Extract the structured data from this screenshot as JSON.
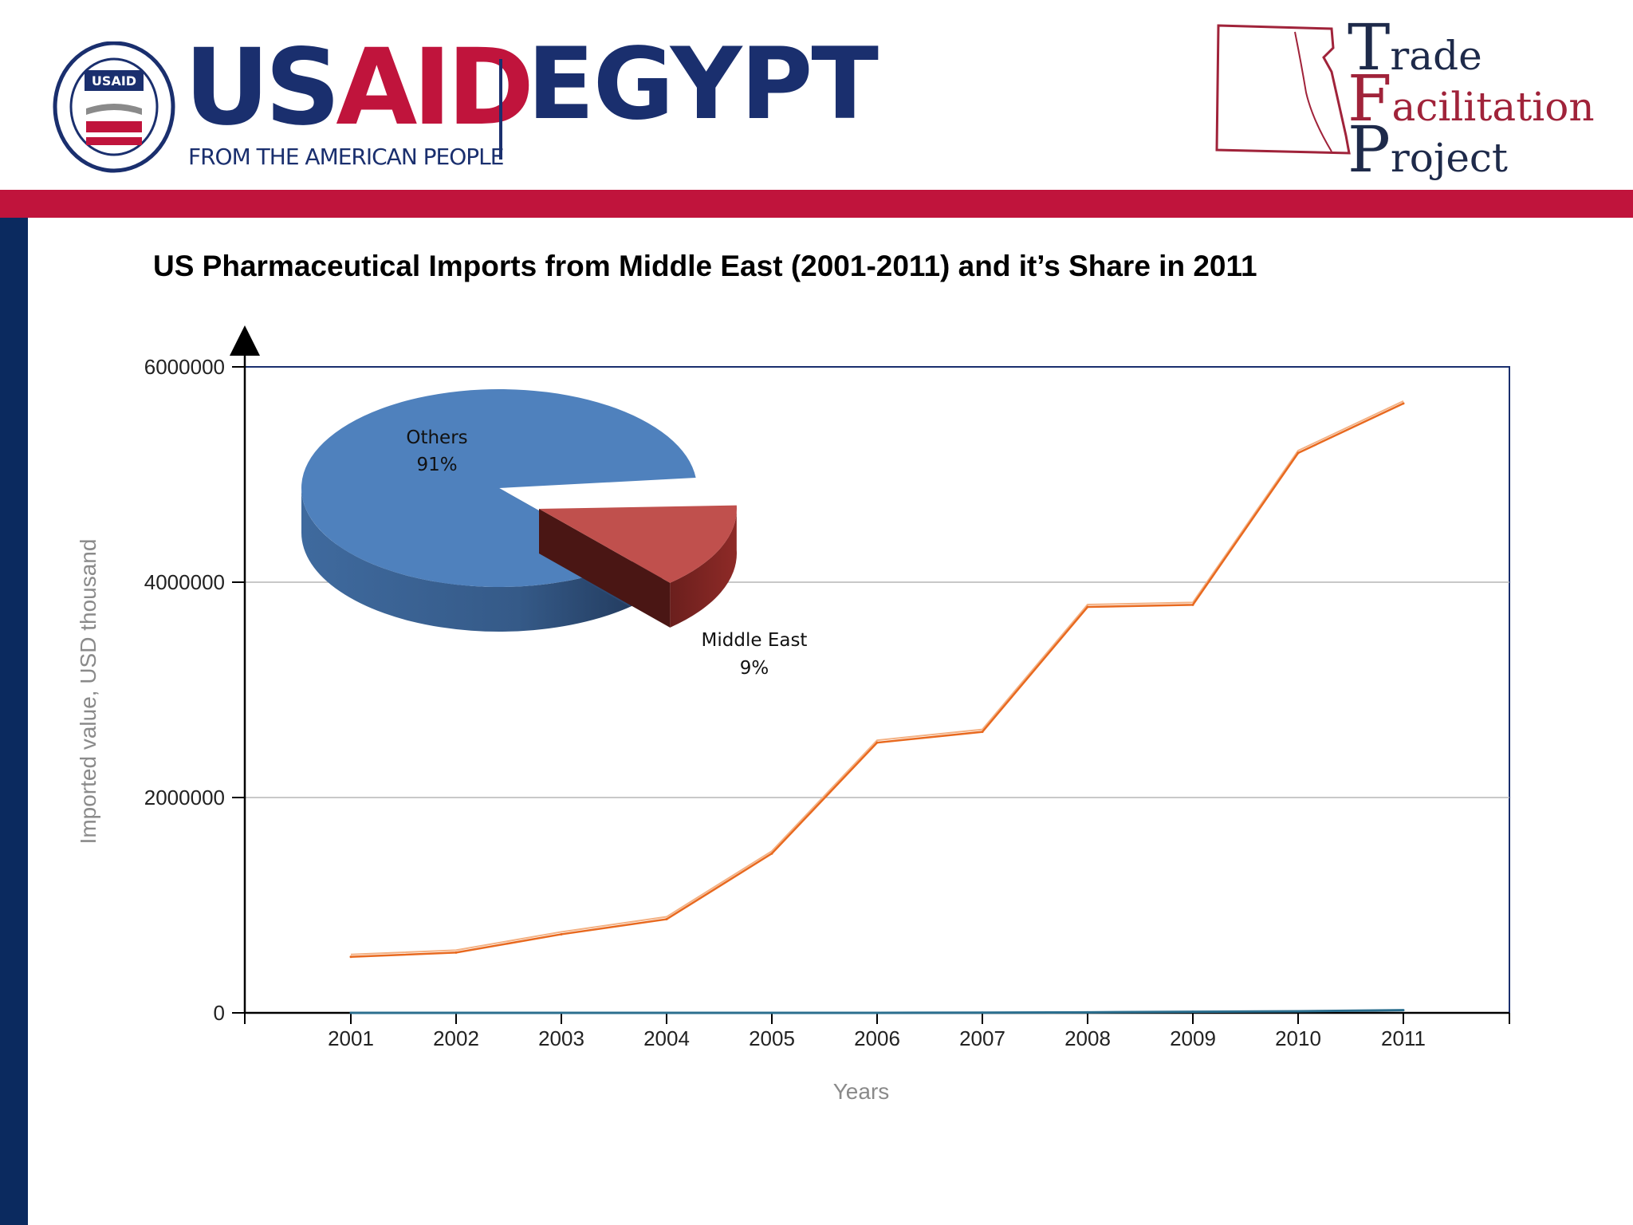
{
  "header": {
    "usaid_word_1": "US",
    "usaid_word_2": "AID",
    "usaid_tagline": "FROM THE AMERICAN PEOPLE",
    "seal_badge": "USAID",
    "egypt": "EGYPT",
    "tfp_line1_cap": "T",
    "tfp_line1_rest": "rade",
    "tfp_line2_cap": "F",
    "tfp_line2_rest": "acilitation",
    "tfp_line3_cap": "P",
    "tfp_line3_rest": "roject"
  },
  "colors": {
    "brand_red": "#c0143c",
    "brand_navy": "#0b2a5f",
    "line_us": "#e8691f",
    "line_me": "#2b6f8f",
    "pie_others": "#4f81bd",
    "pie_middle_east": "#c0504d"
  },
  "chart_data": [
    {
      "type": "line",
      "title": "US Pharmaceutical Imports from Middle East (2001-2011) and it’s Share in 2011",
      "xlabel": "Years",
      "ylabel": "Imported value, USD thousand",
      "x": [
        "2001",
        "2002",
        "2003",
        "2004",
        "2005",
        "2006",
        "2007",
        "2008",
        "2009",
        "2010",
        "2011"
      ],
      "ylim": [
        0,
        6000000
      ],
      "yticks": [
        "0",
        "2000000",
        "4000000",
        "6000000"
      ],
      "grid": true,
      "legend": "none",
      "series": [
        {
          "values": [
            520000,
            560000,
            730000,
            870000,
            1480000,
            2510000,
            2610000,
            3770000,
            3790000,
            5200000,
            5660000
          ]
        },
        {
          "values": [
            0,
            0,
            0,
            0,
            0,
            0,
            2000,
            5000,
            10000,
            15000,
            25000
          ]
        }
      ]
    },
    {
      "type": "pie",
      "slices": [
        {
          "label": "Others",
          "percent_label": "91%",
          "value": 91
        },
        {
          "label": "Middle East",
          "percent_label": "9%",
          "value": 9
        }
      ]
    }
  ]
}
